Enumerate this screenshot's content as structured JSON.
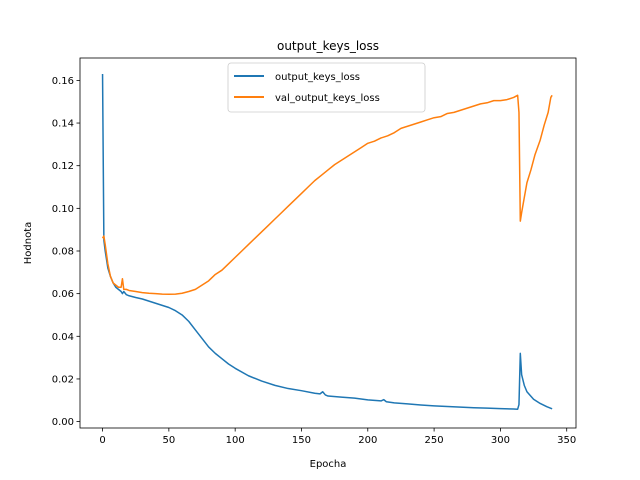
{
  "chart_data": {
    "type": "line",
    "title": "output_keys_loss",
    "xlabel": "Epocha",
    "ylabel": "Hodnota",
    "xlim": [
      -17,
      357
    ],
    "ylim": [
      -0.003,
      0.1705
    ],
    "xticks": [
      0,
      50,
      100,
      150,
      200,
      250,
      300,
      350
    ],
    "xtick_labels": [
      "0",
      "50",
      "100",
      "150",
      "200",
      "250",
      "300",
      "350"
    ],
    "yticks": [
      0.0,
      0.02,
      0.04,
      0.06,
      0.08,
      0.1,
      0.12,
      0.14,
      0.16
    ],
    "ytick_labels": [
      "0.00",
      "0.02",
      "0.04",
      "0.06",
      "0.08",
      "0.10",
      "0.12",
      "0.14",
      "0.16"
    ],
    "grid": false,
    "legend_position": "top-center",
    "series": [
      {
        "name": "output_keys_loss",
        "color": "#1f77b4",
        "points": [
          [
            0,
            0.163
          ],
          [
            1,
            0.085
          ],
          [
            2,
            0.08
          ],
          [
            4,
            0.072
          ],
          [
            6,
            0.068
          ],
          [
            8,
            0.065
          ],
          [
            10,
            0.063
          ],
          [
            12,
            0.062
          ],
          [
            14,
            0.061
          ],
          [
            15,
            0.06
          ],
          [
            16,
            0.061
          ],
          [
            18,
            0.0595
          ],
          [
            20,
            0.059
          ],
          [
            25,
            0.0582
          ],
          [
            30,
            0.0575
          ],
          [
            35,
            0.0565
          ],
          [
            40,
            0.0555
          ],
          [
            45,
            0.0545
          ],
          [
            50,
            0.0535
          ],
          [
            55,
            0.052
          ],
          [
            60,
            0.05
          ],
          [
            65,
            0.047
          ],
          [
            70,
            0.043
          ],
          [
            75,
            0.039
          ],
          [
            80,
            0.035
          ],
          [
            85,
            0.032
          ],
          [
            90,
            0.0295
          ],
          [
            95,
            0.027
          ],
          [
            100,
            0.025
          ],
          [
            110,
            0.0215
          ],
          [
            120,
            0.019
          ],
          [
            130,
            0.017
          ],
          [
            140,
            0.0155
          ],
          [
            150,
            0.0145
          ],
          [
            160,
            0.0133
          ],
          [
            164,
            0.013
          ],
          [
            166,
            0.014
          ],
          [
            168,
            0.0125
          ],
          [
            170,
            0.012
          ],
          [
            180,
            0.0115
          ],
          [
            190,
            0.011
          ],
          [
            200,
            0.0102
          ],
          [
            210,
            0.0097
          ],
          [
            212,
            0.0103
          ],
          [
            214,
            0.0093
          ],
          [
            220,
            0.0088
          ],
          [
            230,
            0.0083
          ],
          [
            240,
            0.0078
          ],
          [
            250,
            0.0074
          ],
          [
            260,
            0.0071
          ],
          [
            270,
            0.0068
          ],
          [
            280,
            0.0065
          ],
          [
            290,
            0.0063
          ],
          [
            300,
            0.0061
          ],
          [
            310,
            0.0059
          ],
          [
            313,
            0.0058
          ],
          [
            314,
            0.008
          ],
          [
            315,
            0.032
          ],
          [
            316,
            0.022
          ],
          [
            318,
            0.017
          ],
          [
            320,
            0.014
          ],
          [
            325,
            0.0105
          ],
          [
            330,
            0.0085
          ],
          [
            335,
            0.007
          ],
          [
            339,
            0.006
          ]
        ]
      },
      {
        "name": "val_output_keys_loss",
        "color": "#ff7f0e",
        "points": [
          [
            0,
            0.086
          ],
          [
            1,
            0.087
          ],
          [
            2,
            0.083
          ],
          [
            4,
            0.074
          ],
          [
            6,
            0.068
          ],
          [
            8,
            0.065
          ],
          [
            10,
            0.064
          ],
          [
            12,
            0.063
          ],
          [
            14,
            0.063
          ],
          [
            15,
            0.067
          ],
          [
            16,
            0.062
          ],
          [
            18,
            0.062
          ],
          [
            20,
            0.0615
          ],
          [
            25,
            0.061
          ],
          [
            30,
            0.0605
          ],
          [
            35,
            0.0602
          ],
          [
            40,
            0.06
          ],
          [
            45,
            0.0598
          ],
          [
            50,
            0.0597
          ],
          [
            55,
            0.0598
          ],
          [
            60,
            0.0602
          ],
          [
            65,
            0.061
          ],
          [
            70,
            0.062
          ],
          [
            75,
            0.064
          ],
          [
            80,
            0.066
          ],
          [
            85,
            0.069
          ],
          [
            90,
            0.071
          ],
          [
            95,
            0.074
          ],
          [
            100,
            0.077
          ],
          [
            105,
            0.08
          ],
          [
            110,
            0.083
          ],
          [
            115,
            0.086
          ],
          [
            120,
            0.089
          ],
          [
            125,
            0.092
          ],
          [
            130,
            0.095
          ],
          [
            135,
            0.098
          ],
          [
            140,
            0.101
          ],
          [
            145,
            0.104
          ],
          [
            150,
            0.107
          ],
          [
            155,
            0.11
          ],
          [
            160,
            0.113
          ],
          [
            165,
            0.1155
          ],
          [
            170,
            0.118
          ],
          [
            175,
            0.1205
          ],
          [
            180,
            0.1225
          ],
          [
            185,
            0.1245
          ],
          [
            190,
            0.1265
          ],
          [
            195,
            0.1285
          ],
          [
            200,
            0.1305
          ],
          [
            205,
            0.1315
          ],
          [
            210,
            0.133
          ],
          [
            215,
            0.134
          ],
          [
            220,
            0.1355
          ],
          [
            225,
            0.1375
          ],
          [
            230,
            0.1385
          ],
          [
            235,
            0.1395
          ],
          [
            240,
            0.1405
          ],
          [
            245,
            0.1415
          ],
          [
            250,
            0.1425
          ],
          [
            255,
            0.143
          ],
          [
            260,
            0.1445
          ],
          [
            265,
            0.145
          ],
          [
            270,
            0.146
          ],
          [
            275,
            0.147
          ],
          [
            280,
            0.148
          ],
          [
            285,
            0.149
          ],
          [
            290,
            0.1495
          ],
          [
            295,
            0.1505
          ],
          [
            300,
            0.1505
          ],
          [
            305,
            0.151
          ],
          [
            310,
            0.152
          ],
          [
            313,
            0.153
          ],
          [
            314,
            0.145
          ],
          [
            315,
            0.094
          ],
          [
            316,
            0.098
          ],
          [
            318,
            0.105
          ],
          [
            320,
            0.112
          ],
          [
            323,
            0.118
          ],
          [
            326,
            0.125
          ],
          [
            330,
            0.132
          ],
          [
            333,
            0.139
          ],
          [
            336,
            0.145
          ],
          [
            338,
            0.152
          ],
          [
            339,
            0.153
          ]
        ]
      }
    ]
  }
}
